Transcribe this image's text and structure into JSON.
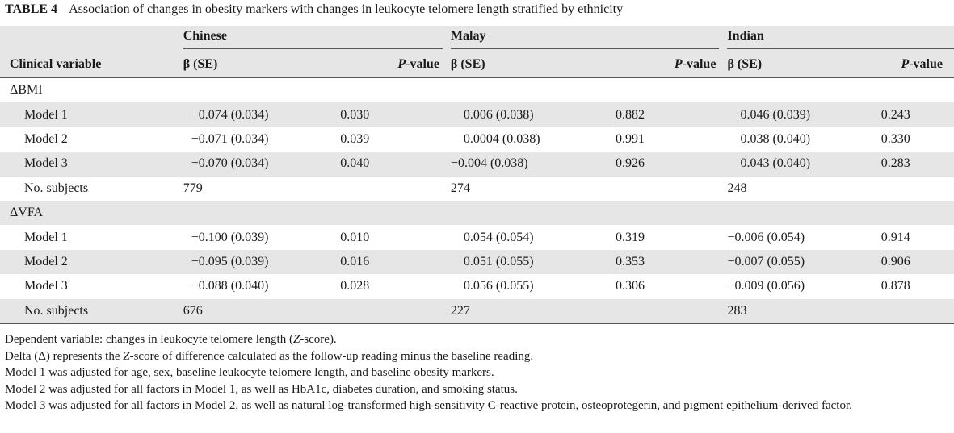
{
  "caption": {
    "label": "TABLE 4",
    "title": "Association of changes in obesity markers with changes in leukocyte telomere length stratified by ethnicity"
  },
  "header": {
    "groups": [
      "Chinese",
      "Malay",
      "Indian"
    ],
    "clinical_variable": "Clinical variable",
    "beta_se": "β (SE)",
    "p_prefix": "P",
    "p_suffix": "-value"
  },
  "sections": [
    {
      "title": "ΔBMI",
      "rows": [
        {
          "label": "Model 1",
          "chinese_beta": "−0.074 (0.034)",
          "chinese_p": "0.030",
          "malay_beta": "0.006 (0.038)",
          "malay_p": "0.882",
          "indian_beta": "0.046 (0.039)",
          "indian_p": "0.243"
        },
        {
          "label": "Model 2",
          "chinese_beta": "−0.071 (0.034)",
          "chinese_p": "0.039",
          "malay_beta": "0.0004 (0.038)",
          "malay_p": "0.991",
          "indian_beta": "0.038 (0.040)",
          "indian_p": "0.330"
        },
        {
          "label": "Model 3",
          "chinese_beta": "−0.070 (0.034)",
          "chinese_p": "0.040",
          "malay_beta": "−0.004 (0.038)",
          "malay_p": "0.926",
          "indian_beta": "0.043 (0.040)",
          "indian_p": "0.283"
        }
      ],
      "subjects": {
        "label": "No. subjects",
        "chinese": "779",
        "malay": "274",
        "indian": "248"
      }
    },
    {
      "title": "ΔVFA",
      "rows": [
        {
          "label": "Model 1",
          "chinese_beta": "−0.100 (0.039)",
          "chinese_p": "0.010",
          "malay_beta": "0.054 (0.054)",
          "malay_p": "0.319",
          "indian_beta": "−0.006 (0.054)",
          "indian_p": "0.914"
        },
        {
          "label": "Model 2",
          "chinese_beta": "−0.095 (0.039)",
          "chinese_p": "0.016",
          "malay_beta": "0.051 (0.055)",
          "malay_p": "0.353",
          "indian_beta": "−0.007 (0.055)",
          "indian_p": "0.906"
        },
        {
          "label": "Model 3",
          "chinese_beta": "−0.088 (0.040)",
          "chinese_p": "0.028",
          "malay_beta": "0.056 (0.055)",
          "malay_p": "0.306",
          "indian_beta": "−0.009 (0.056)",
          "indian_p": "0.878"
        }
      ],
      "subjects": {
        "label": "No. subjects",
        "chinese": "676",
        "malay": "227",
        "indian": "283"
      }
    }
  ],
  "notes": {
    "n1_a": "Dependent variable: changes in leukocyte telomere length (",
    "n1_z": "Z",
    "n1_b": "-score).",
    "n2_a": "Delta (Δ) represents the ",
    "n2_z": "Z",
    "n2_b": "-score of difference calculated as the follow-up reading minus the baseline reading.",
    "n3": "Model 1 was adjusted for age, sex, baseline leukocyte telomere length, and baseline obesity markers.",
    "n4": "Model 2 was adjusted for all factors in Model 1, as well as HbA1c, diabetes duration, and smoking status.",
    "n5": "Model 3 was adjusted for all factors in Model 2, as well as natural log-transformed high-sensitivity C-reactive protein, osteoprotegerin, and pigment epithelium-derived factor."
  }
}
